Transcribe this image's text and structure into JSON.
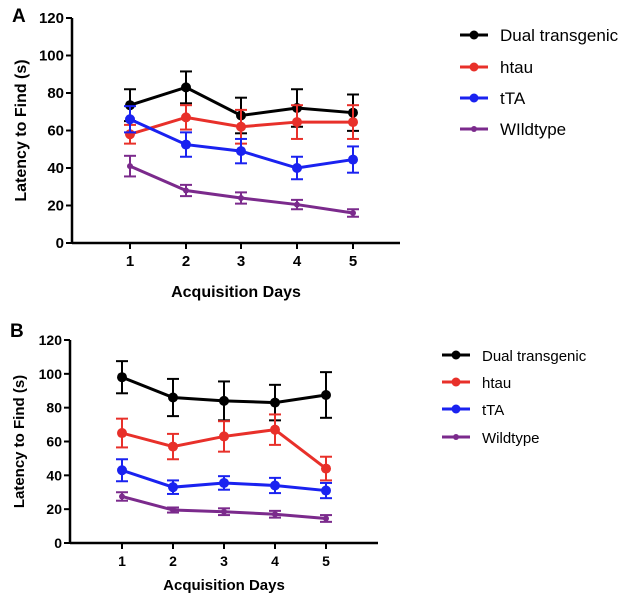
{
  "chart_data": [
    {
      "type": "line",
      "panel_label": "A",
      "title": "",
      "xlabel": "Acquisition Days",
      "ylabel": "Latency to Find (s)",
      "x": [
        1,
        2,
        3,
        4,
        5
      ],
      "x_tick_labels": [
        "1",
        "2",
        "3",
        "4",
        "5"
      ],
      "ylim": [
        0,
        120
      ],
      "y_ticks": [
        0,
        20,
        40,
        60,
        80,
        100,
        120
      ],
      "y_tick_labels": [
        "0",
        "20",
        "40",
        "60",
        "80",
        "100",
        "120"
      ],
      "grid": false,
      "legend_position": "right",
      "series": [
        {
          "name": "Dual transgenic",
          "color": "#000000",
          "values": [
            73.5,
            83,
            68,
            72,
            69.5
          ],
          "error": [
            8.5,
            8.5,
            9.5,
            10,
            9.7
          ]
        },
        {
          "name": "htau",
          "color": "#e8302a",
          "values": [
            58,
            67,
            62,
            64.5,
            64.5
          ],
          "error": [
            5,
            6.5,
            9,
            9,
            9
          ]
        },
        {
          "name": "tTA",
          "color": "#1a22f0",
          "values": [
            66,
            52.5,
            49,
            40,
            44.5
          ],
          "error": [
            7,
            6.5,
            6.5,
            6,
            7
          ]
        },
        {
          "name": "WIldtype",
          "color": "#7b2a8c",
          "values": [
            41,
            28,
            24,
            20.5,
            16
          ],
          "error": [
            5.5,
            3,
            3,
            2.5,
            2
          ]
        }
      ]
    },
    {
      "type": "line",
      "panel_label": "B",
      "title": "",
      "xlabel": "Acquisition Days",
      "ylabel": "Latency to Find (s)",
      "x": [
        1,
        2,
        3,
        4,
        5
      ],
      "x_tick_labels": [
        "1",
        "2",
        "3",
        "4",
        "5"
      ],
      "ylim": [
        0,
        120
      ],
      "y_ticks": [
        0,
        20,
        40,
        60,
        80,
        100,
        120
      ],
      "y_tick_labels": [
        "0",
        "20",
        "40",
        "60",
        "80",
        "100",
        "120"
      ],
      "grid": false,
      "legend_position": "right",
      "series": [
        {
          "name": "Dual transgenic",
          "color": "#000000",
          "values": [
            98,
            86,
            84,
            83,
            87.5
          ],
          "error": [
            9.5,
            11,
            11.5,
            10.5,
            13.5
          ]
        },
        {
          "name": "htau",
          "color": "#e8302a",
          "values": [
            65,
            57,
            63,
            67,
            44
          ],
          "error": [
            8.5,
            7.5,
            9,
            9,
            7
          ]
        },
        {
          "name": "tTA",
          "color": "#1a22f0",
          "values": [
            43,
            33,
            35.5,
            34,
            31
          ],
          "error": [
            6.5,
            4,
            4,
            4.5,
            4.5
          ]
        },
        {
          "name": "Wildtype",
          "color": "#7b2a8c",
          "values": [
            27.5,
            19.5,
            18.5,
            17,
            14.5
          ],
          "error": [
            2.5,
            1.5,
            2,
            2,
            2
          ]
        }
      ]
    }
  ]
}
